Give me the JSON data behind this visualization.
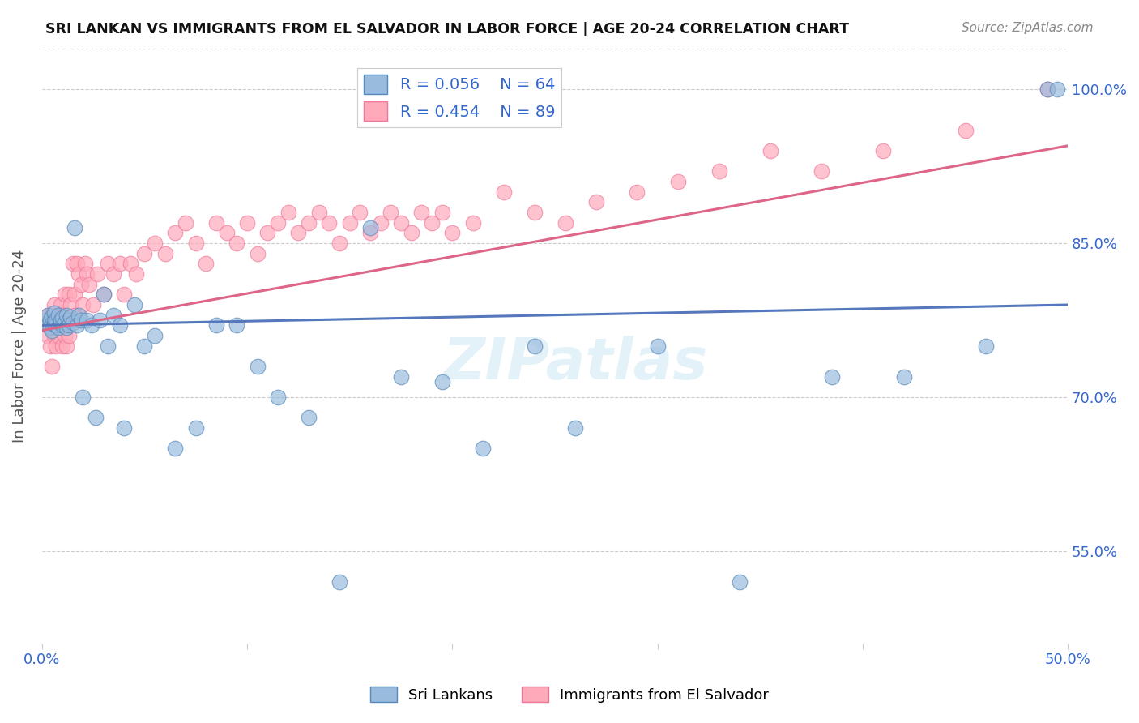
{
  "title": "SRI LANKAN VS IMMIGRANTS FROM EL SALVADOR IN LABOR FORCE | AGE 20-24 CORRELATION CHART",
  "source": "Source: ZipAtlas.com",
  "ylabel": "In Labor Force | Age 20-24",
  "yticks": [
    "55.0%",
    "70.0%",
    "85.0%",
    "100.0%"
  ],
  "ytick_vals": [
    0.55,
    0.7,
    0.85,
    1.0
  ],
  "xlim": [
    0.0,
    0.5
  ],
  "ylim": [
    0.46,
    1.04
  ],
  "sri_lankans_R": 0.056,
  "sri_lankans_N": 64,
  "el_salvador_R": 0.454,
  "el_salvador_N": 89,
  "sri_lankans_color": "#99BBDD",
  "el_salvador_color": "#FFAABB",
  "sri_lankans_edge_color": "#5588BB",
  "el_salvador_edge_color": "#EE7799",
  "sri_lankans_line_color": "#5577BB",
  "el_salvador_line_color": "#DD6688",
  "background_color": "#FFFFFF",
  "legend_label_sri": "Sri Lankans",
  "legend_label_sal": "Immigrants from El Salvador",
  "sri_line_y0": 0.77,
  "sri_line_y1": 0.79,
  "sal_line_y0": 0.765,
  "sal_line_y1": 0.945
}
